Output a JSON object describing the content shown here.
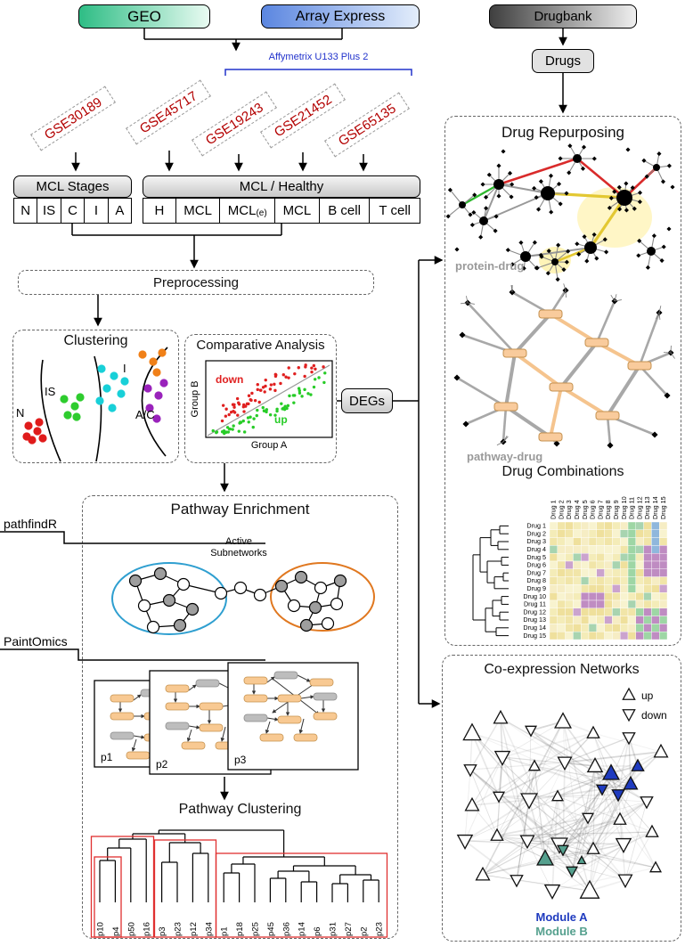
{
  "sources": {
    "geo": "GEO",
    "array_express": "Array Express",
    "drugbank": "Drugbank",
    "drugs": "Drugs",
    "platform": "Affymetrix U133 Plus 2"
  },
  "datasets": [
    "GSE30189",
    "GSE45717",
    "GSE19243",
    "GSE21452",
    "GSE65135"
  ],
  "tables": {
    "stages": {
      "title": "MCL Stages",
      "cells": [
        "N",
        "IS",
        "C",
        "I",
        "A"
      ]
    },
    "healthy": {
      "title": "MCL / Healthy",
      "cells": [
        {
          "t": "H"
        },
        {
          "t": "MCL"
        },
        {
          "t": "MCL",
          "sub": "(e)"
        },
        {
          "t": "MCL"
        },
        {
          "t": "B cell"
        },
        {
          "t": "T cell"
        }
      ]
    }
  },
  "preprocessing": {
    "label": "Preprocessing"
  },
  "clustering": {
    "title": "Clustering",
    "regions": [
      "N",
      "IS",
      "I",
      "A/C"
    ]
  },
  "comparative": {
    "title": "Comparative Analysis",
    "down_label": "down",
    "up_label": "up",
    "xlabel": "Group A",
    "ylabel": "Group B"
  },
  "degs": {
    "label": "DEGs"
  },
  "enrichment": {
    "title": "Pathway Enrichment",
    "tool1": "pathfindR",
    "tool2": "PaintOmics",
    "subnetworks_label": "Active Subnetworks",
    "pathway_pages": [
      "p1",
      "p2",
      "p3"
    ]
  },
  "pathway_clustering": {
    "title": "Pathway Clustering",
    "leaves": [
      "p10",
      "p4",
      "p50",
      "p16",
      "p3",
      "p23",
      "p12",
      "p34",
      "p1",
      "p18",
      "p25",
      "p45",
      "p36",
      "p14",
      "p6",
      "p31",
      "p27",
      "p2",
      "p23"
    ]
  },
  "repurposing": {
    "title": "Drug Repurposing",
    "protein_drug_label": "protein-drug",
    "pathway_drug_label": "pathway-drug"
  },
  "combinations": {
    "title": "Drug Combinations",
    "drugs": [
      "Drug 1",
      "Drug 2",
      "Drug 3",
      "Drug 4",
      "Drug 5",
      "Drug 6",
      "Drug 7",
      "Drug 8",
      "Drug 9",
      "Drug 10",
      "Drug 11",
      "Drug 12",
      "Drug 13",
      "Drug 14",
      "Drug 15"
    ]
  },
  "coexpression": {
    "title": "Co-expression Networks",
    "legend_up": "up",
    "legend_down": "down",
    "module_a_label": "Module A",
    "module_b_label": "Module B"
  },
  "colors": {
    "module_a": "#1f3bbf",
    "module_b": "#55a08e",
    "up": "#27cc27",
    "down": "#e02020",
    "dataset_text": "#b30000",
    "platform_text": "#2233cc"
  }
}
